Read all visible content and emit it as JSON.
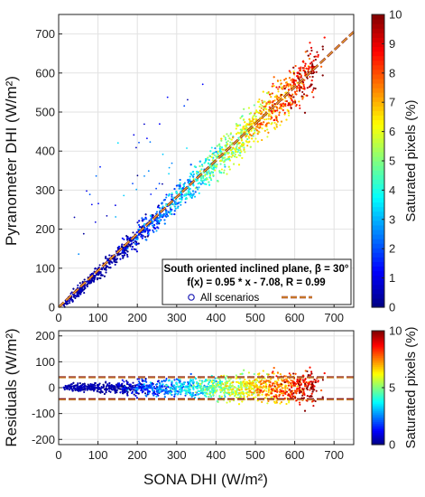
{
  "chart_data": [
    {
      "type": "scatter",
      "xlabel": "SONA DHI (W/m²)",
      "ylabel": "Pyranometer DHI (W/m²)",
      "xlim": [
        0,
        750
      ],
      "ylim": [
        0,
        750
      ],
      "x_ticks": [
        "0",
        "100",
        "200",
        "300",
        "400",
        "500",
        "600",
        "700"
      ],
      "y_ticks": [
        "0",
        "100",
        "200",
        "300",
        "400",
        "500",
        "600",
        "700"
      ],
      "grid": true,
      "colorbar": {
        "label": "Saturated pixels (%)",
        "min": 0,
        "max": 10,
        "ticks": [
          "0",
          "1",
          "2",
          "3",
          "4",
          "5",
          "6",
          "7",
          "8",
          "9",
          "10"
        ],
        "colormap": "jet"
      },
      "fit": {
        "slope": 0.95,
        "intercept": -7.08,
        "R": 0.99
      },
      "legend": {
        "line1": "South oriented inclined plane, β = 30°",
        "line2": "f(x) = 0.95 * x - 7.08,  R = 0.99",
        "marker_label": "All scenarios",
        "placement": "bottom-right"
      },
      "series": [
        {
          "name": "All scenarios",
          "x_range": [
            0,
            730
          ],
          "trend": "y ≈ 0.95x - 7.08",
          "saturation_trend": "low (0–2%) below 300, rising to 5–10% above 550"
        }
      ]
    },
    {
      "type": "scatter",
      "xlabel": "SONA DHI (W/m²)",
      "ylabel": "Residuals (W/m²)",
      "xlim": [
        0,
        750
      ],
      "ylim": [
        -220,
        220
      ],
      "x_ticks": [
        "0",
        "100",
        "200",
        "300",
        "400",
        "500",
        "600",
        "700"
      ],
      "y_ticks": [
        "200",
        "100",
        "0",
        "-100",
        "-200"
      ],
      "grid": true,
      "bounds": [
        40,
        -45
      ],
      "colorbar": {
        "label": "Saturated pixels (%)",
        "min": 0,
        "max": 10,
        "ticks": [
          "0",
          "5",
          "10"
        ],
        "colormap": "jet"
      }
    }
  ],
  "colors": {
    "fit_line": "#8b1e1e",
    "fit_dash": "#ffcc33",
    "bounds": "#8b1e1e",
    "bounds_dash": "#f5c542"
  }
}
